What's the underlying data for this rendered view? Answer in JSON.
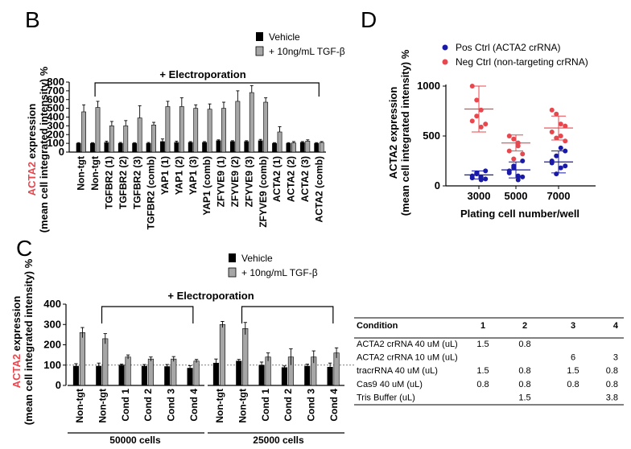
{
  "colors": {
    "vehicle": "#000000",
    "tgf": "#a6a6a6",
    "pos": "#1a1aa8",
    "neg": "#e8474e",
    "accent_red": "#e8474e"
  },
  "chart_data": [
    {
      "panel": "B",
      "type": "bar",
      "title": "",
      "ylabel_red": "ACTA2",
      "ylabel_rest": " expression",
      "ylabel_line2": "(mean cell integrated intensity) %",
      "ylim": [
        0,
        800
      ],
      "yticks": [
        0,
        100,
        200,
        300,
        400,
        500,
        600,
        700,
        800
      ],
      "bracket_label": "+ Electroporation",
      "legend": [
        "Vehicle",
        "+ 10ng/mL TGF-β"
      ],
      "categories": [
        "Non-tgt",
        "Non-tgt",
        "TGFBR2 (1)",
        "TGFBR2 (2)",
        "TGFBR2 (3)",
        "TGFBR2 (comb)",
        "YAP1 (1)",
        "YAP1 (2)",
        "YAP1 (3)",
        "YAP1 (comb)",
        "ZFYVE9 (1)",
        "ZFYVE9 (2)",
        "ZFYVE9 (3)",
        "ZFYVE9 (comb)",
        "ACTA2 (1)",
        "ACTA2 (2)",
        "ACTA2 (3)",
        "ACTA2 (comb)"
      ],
      "series": [
        {
          "name": "Vehicle",
          "values": [
            100,
            100,
            110,
            100,
            100,
            100,
            120,
            110,
            110,
            110,
            130,
            120,
            120,
            130,
            100,
            100,
            110,
            100
          ],
          "errors": [
            8,
            8,
            15,
            10,
            8,
            10,
            30,
            15,
            10,
            10,
            10,
            10,
            10,
            15,
            8,
            8,
            10,
            8
          ]
        },
        {
          "name": "+ 10ng/mL TGF-β",
          "values": [
            460,
            510,
            300,
            300,
            390,
            310,
            520,
            520,
            500,
            490,
            500,
            580,
            680,
            570,
            230,
            105,
            125,
            110
          ],
          "errors": [
            80,
            70,
            50,
            60,
            140,
            30,
            60,
            100,
            40,
            60,
            70,
            120,
            80,
            50,
            60,
            15,
            15,
            10
          ]
        }
      ]
    },
    {
      "panel": "C",
      "type": "bar",
      "title": "",
      "ylabel_red": "ACTA2",
      "ylabel_rest": " expression",
      "ylabel_line2": "(mean cell integrated intensity) %",
      "ylim": [
        0,
        400
      ],
      "yticks": [
        0,
        100,
        200,
        300,
        400
      ],
      "reference_line": 100,
      "bracket_label": "+ Electroporation",
      "legend": [
        "Vehicle",
        "+ 10ng/mL TGF-β"
      ],
      "categories": [
        "Non-tgt",
        "Non-tgt",
        "Cond 1",
        "Cond 2",
        "Cond 3",
        "Cond 4",
        "Non-tgt",
        "Non-tgt",
        "Cond 1",
        "Cond 2",
        "Cond 3",
        "Cond 4"
      ],
      "groups": [
        {
          "label": "50000 cells",
          "count": 6
        },
        {
          "label": "25000 cells",
          "count": 6
        }
      ],
      "series": [
        {
          "name": "Vehicle",
          "values": [
            95,
            95,
            100,
            95,
            93,
            85,
            110,
            120,
            100,
            88,
            95,
            90
          ],
          "errors": [
            12,
            15,
            5,
            8,
            10,
            12,
            20,
            8,
            15,
            8,
            10,
            20
          ]
        },
        {
          "name": "+ 10ng/mL TGF-β",
          "values": [
            260,
            230,
            140,
            130,
            130,
            120,
            300,
            280,
            140,
            140,
            140,
            160
          ],
          "errors": [
            25,
            25,
            10,
            10,
            12,
            8,
            15,
            30,
            20,
            40,
            30,
            25
          ]
        }
      ]
    },
    {
      "panel": "D",
      "type": "scatter",
      "title": "",
      "xlabel": "Plating cell number/well",
      "ylabel_red": "",
      "ylabel_rest": "ACTA2 expression",
      "ylabel_line2": "(mean cell integrated  intensity) %",
      "ylim": [
        0,
        1000
      ],
      "yticks": [
        0,
        500,
        1000
      ],
      "categories": [
        "3000",
        "5000",
        "7000"
      ],
      "legend": [
        "Pos Ctrl (ACTA2 crRNA)",
        "Neg Ctrl (non-targeting crRNA)"
      ],
      "series": [
        {
          "name": "Pos Ctrl (ACTA2 crRNA)",
          "points": [
            [
              100,
              120,
              60,
              150,
              80,
              130,
              90,
              70
            ],
            [
              150,
              200,
              100,
              250,
              130,
              180,
              60,
              90
            ],
            [
              230,
              300,
              180,
              350,
              250,
              120,
              380,
              200
            ]
          ],
          "mean": [
            110,
            160,
            240
          ],
          "sd": [
            40,
            80,
            110
          ]
        },
        {
          "name": "Neg Ctrl (non-targeting crRNA)",
          "points": [
            [
              1000,
              860,
              760,
              620,
              650,
              700,
              590
            ],
            [
              500,
              470,
              400,
              320,
              350,
              270,
              430
            ],
            [
              760,
              720,
              620,
              600,
              540,
              480,
              500,
              450
            ]
          ],
          "mean": [
            770,
            430,
            580
          ],
          "sd": [
            230,
            80,
            120
          ]
        }
      ]
    }
  ],
  "table": {
    "headers": [
      "Condition",
      "1",
      "2",
      "3",
      "4"
    ],
    "rows": [
      [
        "ACTA2 crRNA 40 uM (uL)",
        "1.5",
        "0.8",
        "",
        ""
      ],
      [
        "ACTA2 crRNA 10 uM (uL)",
        "",
        "",
        "6",
        "3"
      ],
      [
        "tracrRNA 40 uM (uL)",
        "1.5",
        "0.8",
        "1.5",
        "0.8"
      ],
      [
        "Cas9 40 uM (uL)",
        "0.8",
        "0.8",
        "0.8",
        "0.8"
      ],
      [
        "Tris Buffer (uL)",
        "",
        "1.5",
        "",
        "3.8"
      ]
    ]
  }
}
